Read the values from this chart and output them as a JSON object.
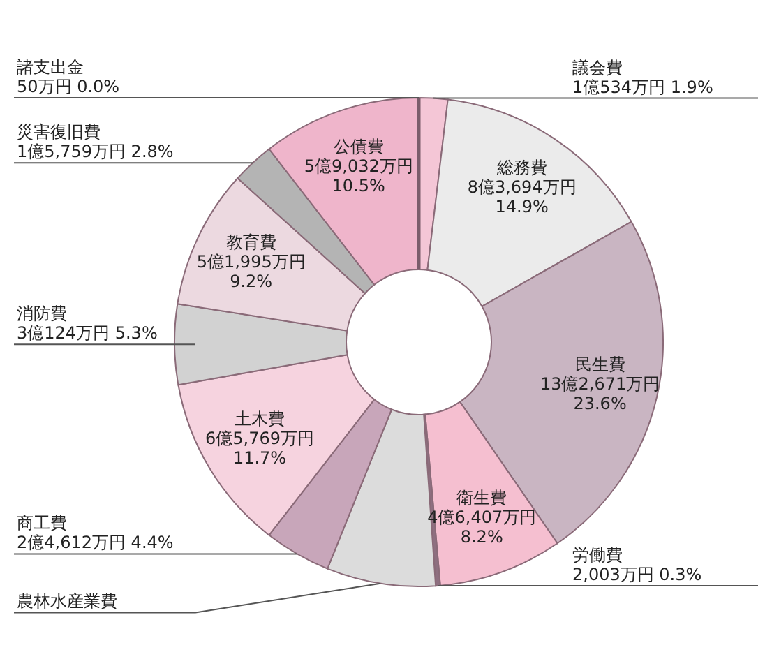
{
  "chart_data": {
    "type": "donut",
    "categories": [
      "議会費",
      "総務費",
      "民生費",
      "衛生費",
      "労働費",
      "農林水産業費",
      "商工費",
      "土木費",
      "消防費",
      "教育費",
      "災害復旧費",
      "公債費",
      "諸支出金"
    ],
    "values": [
      1.9,
      14.9,
      23.6,
      8.2,
      0.3,
      7.2,
      4.4,
      11.7,
      5.3,
      9.2,
      2.8,
      10.5,
      0.0
    ],
    "colors": [
      "#f4c6d6",
      "#ebebeb",
      "#c9b5c2",
      "#f5bfd0",
      "#8e6f80",
      "#dcdcdc",
      "#c8a6ba",
      "#f6d3df",
      "#d2d2d2",
      "#ecd9e0",
      "#b4b4b4",
      "#efb5cb",
      "#7a5c6b"
    ],
    "value_labels": [
      "1億534万円 1.9%",
      "8億3,694万円 14.9%",
      "13億2,671万円 23.6%",
      "4億6,407万円 8.2%",
      "2,003万円 0.3%",
      null,
      "2億4,612万円 4.4%",
      "6億5,769万円 11.7%",
      "3億124万円 5.3%",
      "5億1,995万円 9.2%",
      "1億5,759万円 2.8%",
      "5億9,032万円 10.5%",
      "50万円 0.0%"
    ]
  }
}
